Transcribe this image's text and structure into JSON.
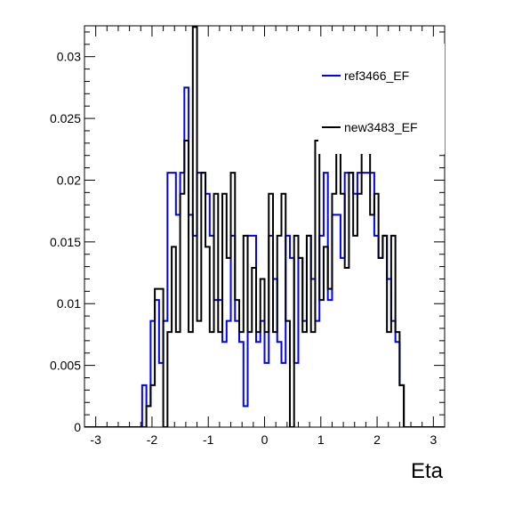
{
  "chart_data": {
    "type": "line",
    "style": "step-histogram",
    "title": "",
    "xlabel": "Eta",
    "ylabel": "",
    "xlim": [
      -3.2,
      3.2
    ],
    "ylim": [
      0,
      0.0325
    ],
    "x_ticks": [
      "-3",
      "-2",
      "-1",
      "0",
      "1",
      "2",
      "3"
    ],
    "y_ticks": [
      "0",
      "0.005",
      "0.01",
      "0.015",
      "0.02",
      "0.025",
      "0.03"
    ],
    "bins": {
      "count": 80,
      "min": -3.0,
      "max": 3.0
    },
    "grid": false,
    "legend_position": "top-right",
    "series": [
      {
        "name": "ref3466_EF",
        "color": "#0000ff",
        "values": [
          0,
          0,
          0,
          0,
          0,
          0,
          0,
          0,
          0,
          0,
          0,
          0.0034,
          0.0017,
          0.0086,
          0.0103,
          0.0052,
          0.0086,
          0.0206,
          0.0206,
          0.0172,
          0.0206,
          0.0275,
          0.0172,
          0.0155,
          0.0206,
          0.0206,
          0.0189,
          0.0155,
          0.0103,
          0.0103,
          0.0069,
          0.0086,
          0.0155,
          0.0086,
          0.0069,
          0.0017,
          0.0155,
          0.0155,
          0.0069,
          0.0086,
          0.0052,
          0.0155,
          0.012,
          0.0069,
          0.0052,
          0.0155,
          0.0137,
          0.0052,
          0.0137,
          0.0086,
          0.0155,
          0.012,
          0.0086,
          0.0155,
          0.0206,
          0.0103,
          0.0172,
          0.0172,
          0.0137,
          0.0206,
          0.0206,
          0.0189,
          0.0206,
          0.0206,
          0.0206,
          0.0206,
          0.0155,
          0.0137,
          0.0155,
          0.012,
          0.0086,
          0.0069,
          0.0034,
          0,
          0,
          0,
          0,
          0,
          0,
          0
        ]
      },
      {
        "name": "new3483_EF",
        "color": "#000000",
        "values": [
          0,
          0,
          0,
          0,
          0,
          0,
          0,
          0,
          0,
          0,
          0,
          0,
          0.0017,
          0.0034,
          0.0112,
          0.0112,
          0,
          0.0077,
          0.0146,
          0.0077,
          0.0189,
          0.0232,
          0.0077,
          0.0324,
          0.0086,
          0.0206,
          0.0146,
          0.0077,
          0.0189,
          0.0077,
          0.0189,
          0.0137,
          0.0206,
          0.0103,
          0.0077,
          0.0155,
          0.0077,
          0.0129,
          0.0077,
          0.012,
          0.0077,
          0.0189,
          0.0077,
          0.0155,
          0.0189,
          0.0086,
          0,
          0.0155,
          0.0137,
          0.0077,
          0.0155,
          0.0077,
          0.0232,
          0.0103,
          0.0146,
          0.0112,
          0.0189,
          0.0232,
          0.0189,
          0.0129,
          0.0206,
          0.0155,
          0.0189,
          0.0232,
          0.0232,
          0.0172,
          0.0189,
          0.0137,
          0.0155,
          0.0077,
          0.0155,
          0.0077,
          0.0034,
          0,
          0,
          0,
          0,
          0,
          0,
          0
        ]
      }
    ]
  }
}
